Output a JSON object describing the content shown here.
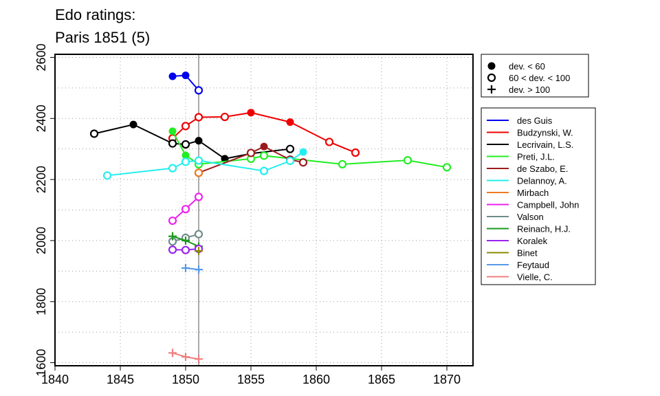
{
  "chart_data": {
    "type": "line",
    "title": [
      "Edo ratings:",
      "Paris 1851 (5)"
    ],
    "xlabel": "",
    "ylabel": "",
    "xlim": [
      1840,
      1872
    ],
    "ylim": [
      1590,
      2610
    ],
    "xticks": [
      1840,
      1845,
      1850,
      1855,
      1860,
      1865,
      1870
    ],
    "yticks": [
      1600,
      1800,
      2000,
      2200,
      2400,
      2600
    ],
    "grid": "dotted",
    "reference_line_x": 1851,
    "marker_legend": [
      {
        "marker": "filled",
        "label": "dev. < 60"
      },
      {
        "marker": "open",
        "label": "60 < dev. < 100"
      },
      {
        "marker": "plus",
        "label": "dev. > 100"
      }
    ],
    "series": [
      {
        "name": "des Guis",
        "color": "#0000ee",
        "points": [
          {
            "x": 1849,
            "y": 2538,
            "m": "filled"
          },
          {
            "x": 1850,
            "y": 2541,
            "m": "filled"
          },
          {
            "x": 1851,
            "y": 2492,
            "m": "open"
          }
        ]
      },
      {
        "name": "Budzynski, W.",
        "color": "#ee0000",
        "points": [
          {
            "x": 1849,
            "y": 2335,
            "m": "open"
          },
          {
            "x": 1850,
            "y": 2375,
            "m": "open"
          },
          {
            "x": 1851,
            "y": 2404,
            "m": "open"
          },
          {
            "x": 1853,
            "y": 2405,
            "m": "open"
          },
          {
            "x": 1855,
            "y": 2419,
            "m": "filled"
          },
          {
            "x": 1858,
            "y": 2388,
            "m": "filled"
          },
          {
            "x": 1861,
            "y": 2323,
            "m": "open"
          },
          {
            "x": 1863,
            "y": 2288,
            "m": "open"
          }
        ]
      },
      {
        "name": "Lecrivain, L.S.",
        "color": "#000000",
        "points": [
          {
            "x": 1843,
            "y": 2350,
            "m": "open"
          },
          {
            "x": 1846,
            "y": 2380,
            "m": "filled"
          },
          {
            "x": 1849,
            "y": 2318,
            "m": "open"
          },
          {
            "x": 1850,
            "y": 2315,
            "m": "open"
          },
          {
            "x": 1851,
            "y": 2327,
            "m": "filled"
          },
          {
            "x": 1853,
            "y": 2268,
            "m": "filled"
          },
          {
            "x": 1855,
            "y": 2285,
            "m": "filled"
          },
          {
            "x": 1858,
            "y": 2300,
            "m": "open"
          }
        ]
      },
      {
        "name": "Preti, J.L.",
        "color": "#22ee22",
        "points": [
          {
            "x": 1849,
            "y": 2358,
            "m": "filled"
          },
          {
            "x": 1850,
            "y": 2279,
            "m": "filled"
          },
          {
            "x": 1851,
            "y": 2250,
            "m": "open"
          },
          {
            "x": 1855,
            "y": 2268,
            "m": "open"
          },
          {
            "x": 1856,
            "y": 2278,
            "m": "open"
          },
          {
            "x": 1862,
            "y": 2250,
            "m": "open"
          },
          {
            "x": 1867,
            "y": 2263,
            "m": "open"
          },
          {
            "x": 1870,
            "y": 2240,
            "m": "open"
          }
        ]
      },
      {
        "name": "de Szabo, E.",
        "color": "#9b1b1b",
        "points": [
          {
            "x": 1851,
            "y": 2222,
            "m": "open"
          },
          {
            "x": 1855,
            "y": 2287,
            "m": "open"
          },
          {
            "x": 1856,
            "y": 2308,
            "m": "filled"
          },
          {
            "x": 1858,
            "y": 2265,
            "m": "open"
          },
          {
            "x": 1859,
            "y": 2256,
            "m": "open"
          }
        ]
      },
      {
        "name": "Delannoy, A.",
        "color": "#22eeee",
        "points": [
          {
            "x": 1844,
            "y": 2213,
            "m": "open"
          },
          {
            "x": 1849,
            "y": 2237,
            "m": "open"
          },
          {
            "x": 1850,
            "y": 2258,
            "m": "open"
          },
          {
            "x": 1851,
            "y": 2262,
            "m": "open"
          },
          {
            "x": 1856,
            "y": 2228,
            "m": "open"
          },
          {
            "x": 1858,
            "y": 2261,
            "m": "open"
          },
          {
            "x": 1859,
            "y": 2290,
            "m": "filled"
          }
        ]
      },
      {
        "name": "Mirbach",
        "color": "#f07820",
        "points": [
          {
            "x": 1851,
            "y": 2222,
            "m": "open"
          }
        ]
      },
      {
        "name": "Campbell, John",
        "color": "#ee22ee",
        "points": [
          {
            "x": 1849,
            "y": 2065,
            "m": "open"
          },
          {
            "x": 1850,
            "y": 2103,
            "m": "open"
          },
          {
            "x": 1851,
            "y": 2143,
            "m": "open"
          }
        ]
      },
      {
        "name": "Valson",
        "color": "#6e8b8b",
        "points": [
          {
            "x": 1849,
            "y": 1997,
            "m": "open"
          },
          {
            "x": 1850,
            "y": 2009,
            "m": "open"
          },
          {
            "x": 1851,
            "y": 2021,
            "m": "open"
          }
        ]
      },
      {
        "name": "Reinach, H.J.",
        "color": "#1a9a1a",
        "points": [
          {
            "x": 1849,
            "y": 2014,
            "m": "plus"
          },
          {
            "x": 1850,
            "y": 2000,
            "m": "plus"
          },
          {
            "x": 1851,
            "y": 1981,
            "m": "plus"
          }
        ]
      },
      {
        "name": "Koralek",
        "color": "#9a22ee",
        "points": [
          {
            "x": 1849,
            "y": 1970,
            "m": "open"
          },
          {
            "x": 1850,
            "y": 1969,
            "m": "open"
          },
          {
            "x": 1851,
            "y": 1973,
            "m": "open"
          }
        ]
      },
      {
        "name": "Binet",
        "color": "#8b8b00",
        "points": [
          {
            "x": 1851,
            "y": 1966,
            "m": "plus"
          }
        ]
      },
      {
        "name": "Feytaud",
        "color": "#5599e8",
        "points": [
          {
            "x": 1850,
            "y": 1910,
            "m": "plus"
          },
          {
            "x": 1851,
            "y": 1905,
            "m": "plus"
          }
        ]
      },
      {
        "name": "Vielle, C.",
        "color": "#f08080",
        "points": [
          {
            "x": 1849,
            "y": 1632,
            "m": "plus"
          },
          {
            "x": 1850,
            "y": 1619,
            "m": "plus"
          },
          {
            "x": 1851,
            "y": 1612,
            "m": "plus"
          }
        ]
      }
    ]
  }
}
